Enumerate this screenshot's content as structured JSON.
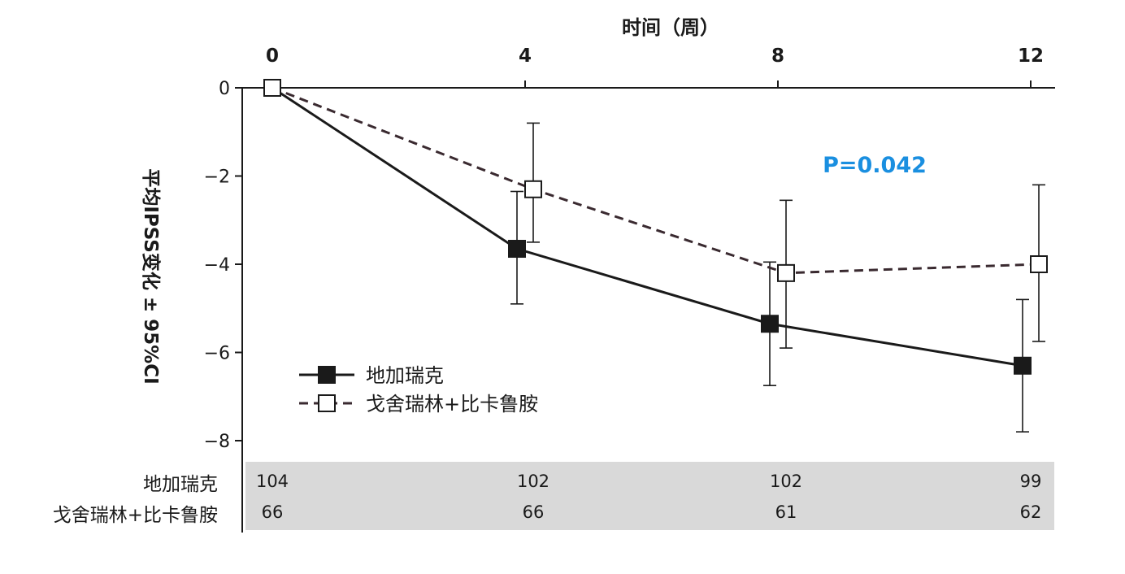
{
  "chart_data": {
    "type": "line",
    "title": "",
    "xlabel": "时间（周）",
    "ylabel": "平均IPSS变化 ± 95%CI",
    "x": [
      0,
      4,
      8,
      12
    ],
    "xticks": [
      "0",
      "4",
      "8",
      "12"
    ],
    "yticks": [
      "0",
      "−2",
      "−4",
      "−6",
      "−8"
    ],
    "ylim": [
      -8,
      0
    ],
    "xlim": [
      0,
      12
    ],
    "grid": false,
    "legend_position": "bottom-left",
    "annotation": "P=0.042",
    "annotation_color": "#1a8fe0",
    "series": [
      {
        "name": "地加瑞克",
        "values": [
          0,
          -3.65,
          -5.35,
          -6.3
        ],
        "ci_low": [
          0,
          -4.9,
          -6.75,
          -7.8
        ],
        "ci_high": [
          0,
          -2.35,
          -3.95,
          -4.8
        ],
        "line_style": "solid",
        "marker": "filled-square",
        "color": "#1a1a1a"
      },
      {
        "name": "戈舍瑞林+比卡鲁胺",
        "values": [
          0,
          -2.3,
          -4.2,
          -4.0
        ],
        "ci_low": [
          0,
          -3.5,
          -5.9,
          -5.75
        ],
        "ci_high": [
          0,
          -0.8,
          -2.55,
          -2.2
        ],
        "line_style": "dashed",
        "marker": "open-square",
        "color": "#3a2a30"
      }
    ],
    "at_risk_table": {
      "rows": [
        {
          "label": "地加瑞克",
          "values": [
            "104",
            "102",
            "102",
            "99"
          ]
        },
        {
          "label": "戈舍瑞林+比卡鲁胺",
          "values": [
            "66",
            "66",
            "61",
            "62"
          ]
        }
      ]
    }
  }
}
